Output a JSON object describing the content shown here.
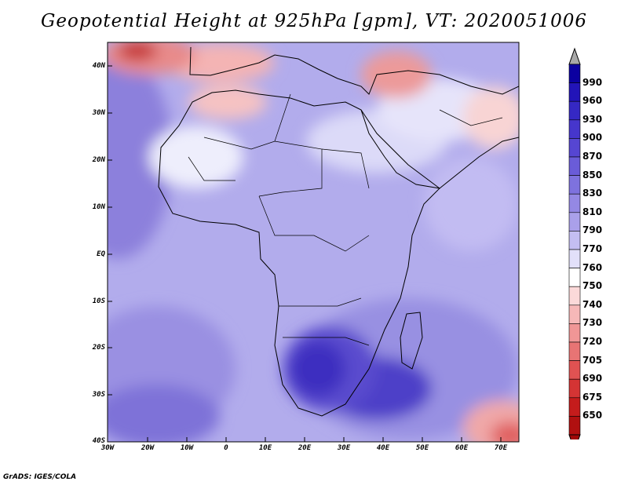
{
  "title": "Geopotential Height at 925hPa [gpm], VT: 2020051006",
  "footer": "GrADS: IGES/COLA",
  "lat_ticks": [
    "40N",
    "30N",
    "20N",
    "10N",
    "EQ",
    "10S",
    "20S",
    "30S",
    "40S"
  ],
  "lon_ticks": [
    "30W",
    "20W",
    "10W",
    "0",
    "10E",
    "20E",
    "30E",
    "40E",
    "50E",
    "60E",
    "70E"
  ],
  "colorbar": {
    "levels": [
      "990",
      "960",
      "930",
      "900",
      "870",
      "850",
      "830",
      "810",
      "790",
      "770",
      "760",
      "750",
      "740",
      "730",
      "720",
      "705",
      "690",
      "675",
      "650"
    ],
    "colors": [
      "#0b00a0",
      "#2214b8",
      "#3528c4",
      "#4636cc",
      "#5646d2",
      "#6a5cd8",
      "#7e72de",
      "#9488e4",
      "#aaa0ea",
      "#c4bef2",
      "#e2e0fa",
      "#ffffff",
      "#fbd9d9",
      "#f6b8b8",
      "#f09696",
      "#e87474",
      "#e05252",
      "#d43434",
      "#c41c1c",
      "#b01010"
    ],
    "over_color": "#a8a8a8",
    "under_color": "#a00808"
  }
}
